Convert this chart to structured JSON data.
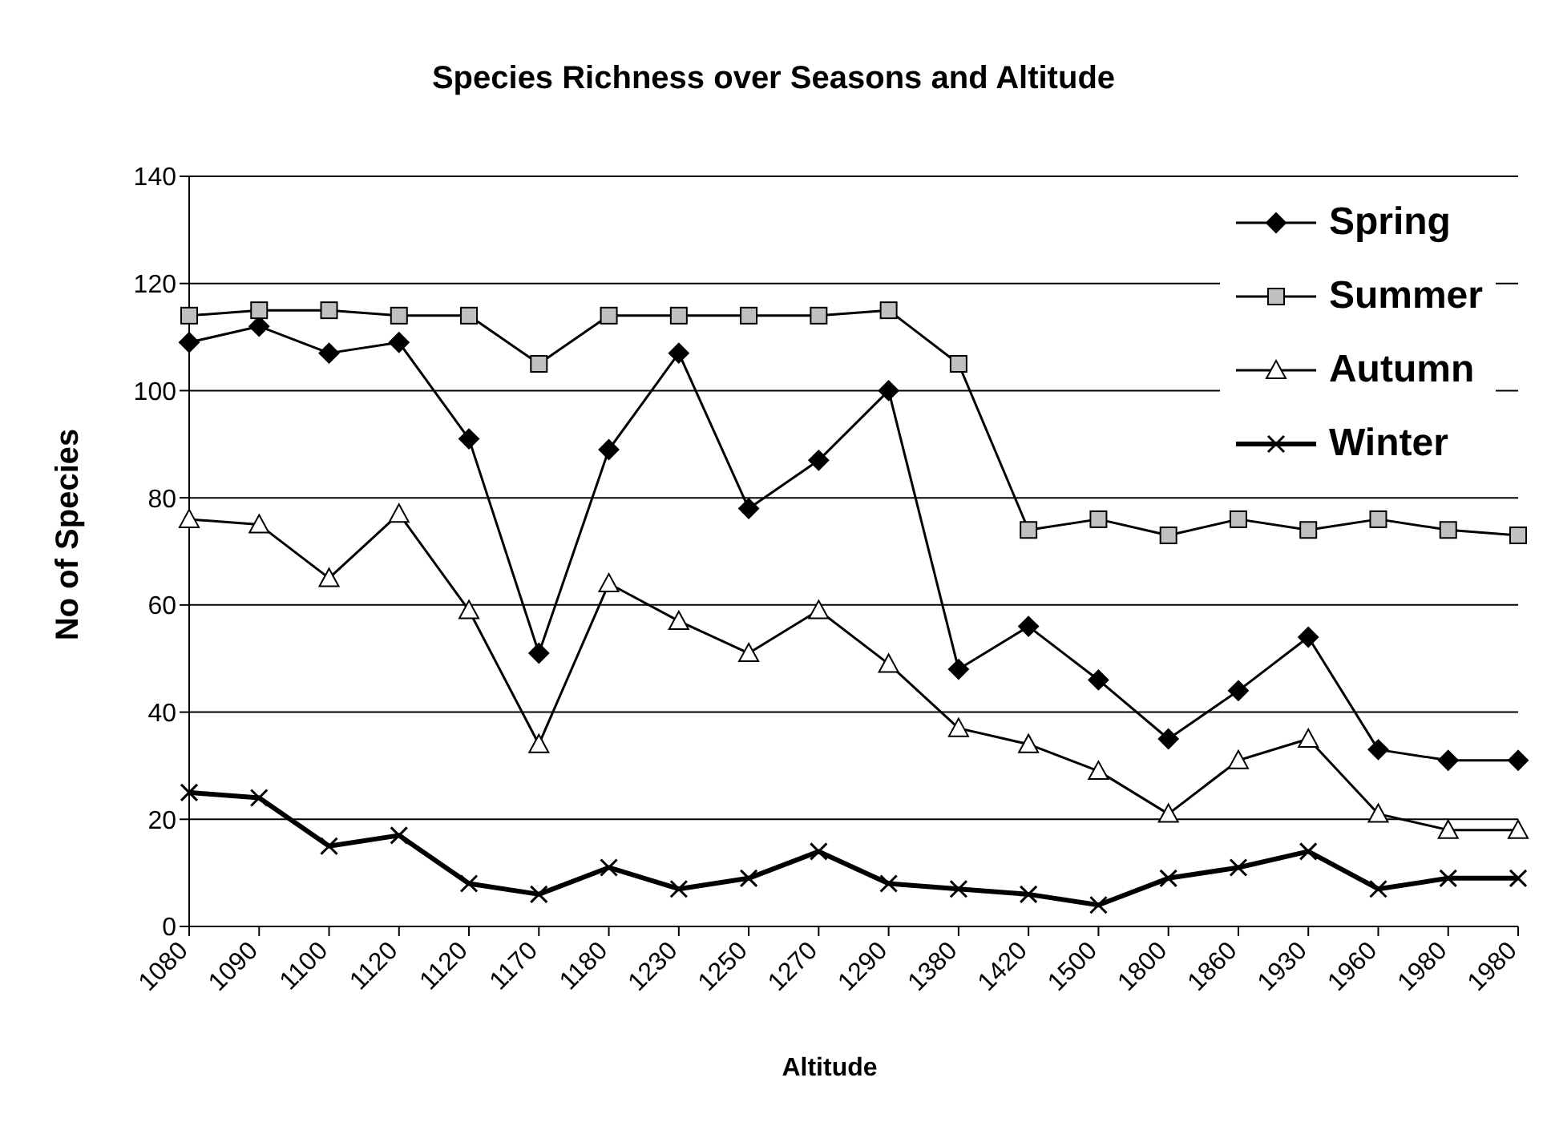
{
  "chart_data": {
    "type": "line",
    "title": "Species Richness over Seasons and Altitude",
    "xlabel": "Altitude",
    "ylabel": "No of Species",
    "categories": [
      "1080",
      "1090",
      "1100",
      "1120",
      "1120",
      "1170",
      "1180",
      "1230",
      "1250",
      "1270",
      "1290",
      "1380",
      "1420",
      "1500",
      "1800",
      "1860",
      "1930",
      "1960",
      "1980",
      "1980"
    ],
    "series": [
      {
        "name": "Spring",
        "color": "#000000",
        "marker": "diamond",
        "values": [
          109,
          112,
          107,
          109,
          91,
          51,
          89,
          107,
          78,
          87,
          100,
          48,
          56,
          46,
          35,
          44,
          54,
          33,
          31,
          31
        ]
      },
      {
        "name": "Summer",
        "color": "#c0c0c0",
        "marker": "square",
        "values": [
          114,
          115,
          115,
          114,
          114,
          105,
          114,
          114,
          114,
          114,
          115,
          105,
          74,
          76,
          73,
          76,
          74,
          76,
          74,
          73
        ]
      },
      {
        "name": "Autumn",
        "color": "#ffffff",
        "marker": "triangle",
        "values": [
          76,
          75,
          65,
          77,
          59,
          34,
          64,
          57,
          51,
          59,
          49,
          37,
          34,
          29,
          21,
          31,
          35,
          21,
          18,
          18
        ]
      },
      {
        "name": "Winter",
        "color": "#000000",
        "marker": "cross",
        "values": [
          25,
          24,
          15,
          17,
          8,
          6,
          11,
          7,
          9,
          14,
          8,
          7,
          6,
          4,
          9,
          11,
          14,
          7,
          9,
          9
        ]
      }
    ],
    "ylim": [
      0,
      140
    ],
    "yticks": [
      0,
      20,
      40,
      60,
      80,
      100,
      120,
      140
    ],
    "grid": "y",
    "legend": "top right",
    "line_style": "solid"
  }
}
